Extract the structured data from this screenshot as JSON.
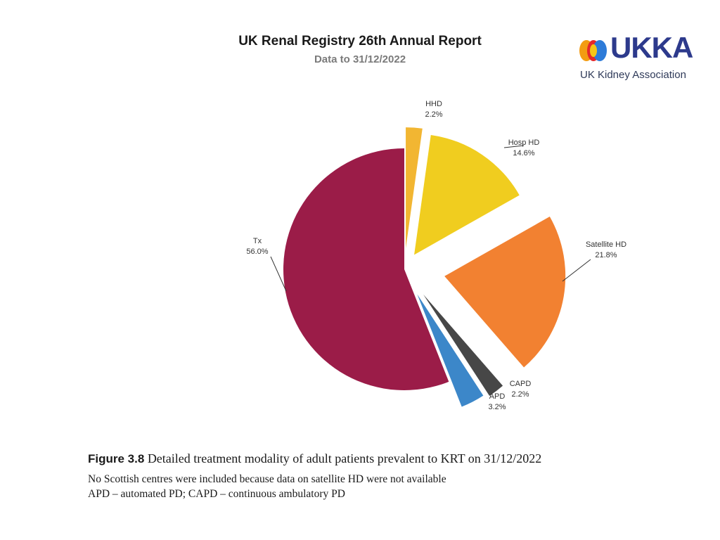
{
  "header": {
    "title": "UK Renal Registry 26th Annual Report",
    "subtitle": "Data to 31/12/2022"
  },
  "logo": {
    "wordmark": "UKKA",
    "tagline": "UK Kidney Association",
    "colors": {
      "blue": "#2d3a8c",
      "orange": "#f39c12",
      "red": "#e5282a",
      "yellow": "#f5c518"
    }
  },
  "chart_data": {
    "type": "pie",
    "exploded": true,
    "start": "12 o'clock, clockwise",
    "slices": [
      {
        "label": "HHD",
        "value": 2.2,
        "value_text": "2.2%",
        "color": "#f2b632"
      },
      {
        "label": "Hosp HD",
        "value": 14.6,
        "value_text": "14.6%",
        "color": "#f0cd1f"
      },
      {
        "label": "Satellite HD",
        "value": 21.8,
        "value_text": "21.8%",
        "color": "#f28131"
      },
      {
        "label": "CAPD",
        "value": 2.2,
        "value_text": "2.2%",
        "color": "#474747"
      },
      {
        "label": "APD",
        "value": 3.2,
        "value_text": "3.2%",
        "color": "#3c87c9"
      },
      {
        "label": "Tx",
        "value": 56.0,
        "value_text": "56.0%",
        "color": "#9b1c48"
      }
    ]
  },
  "caption": {
    "figure_label": "Figure 3.8",
    "figure_text": " Detailed treatment modality of adult patients prevalent to KRT on 31/12/2022",
    "note1": "No Scottish centres were included because data on satellite HD were not available",
    "note2": "APD – automated PD; CAPD – continuous ambulatory PD"
  }
}
